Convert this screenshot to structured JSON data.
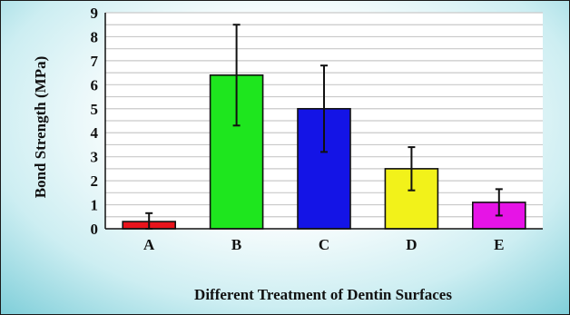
{
  "chart_data": {
    "type": "bar",
    "title": "",
    "xlabel": "Different Treatment of Dentin Surfaces",
    "ylabel": "Bond Strength (MPa)",
    "categories": [
      "A",
      "B",
      "C",
      "D",
      "E"
    ],
    "values": [
      0.3,
      6.4,
      5.0,
      2.5,
      1.1
    ],
    "error": [
      0.35,
      2.1,
      1.8,
      0.9,
      0.55
    ],
    "colors": [
      "#e8141c",
      "#1ee61e",
      "#1414e6",
      "#f2f21a",
      "#e614e6"
    ],
    "ylim": [
      0,
      9
    ],
    "yticks": [
      "0",
      "1",
      "2",
      "3",
      "4",
      "5",
      "6",
      "7",
      "8",
      "9"
    ],
    "grid": true,
    "legend": "none"
  }
}
